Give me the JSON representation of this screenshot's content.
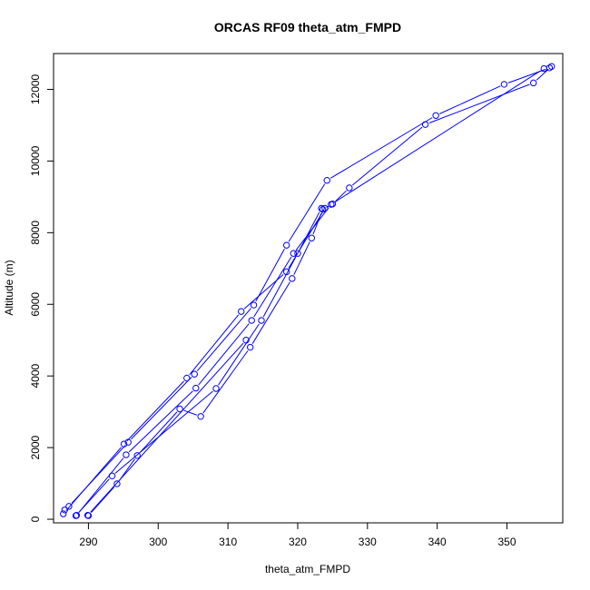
{
  "chart_data": {
    "type": "line",
    "title": "ORCAS RF09 theta_atm_FMPD",
    "xlabel": "theta_atm_FMPD",
    "ylabel": "Altitude (m)",
    "xlim": [
      285,
      358
    ],
    "ylim": [
      -100,
      13000
    ],
    "x_ticks": [
      290,
      300,
      310,
      320,
      330,
      340,
      350
    ],
    "y_ticks": [
      0,
      2000,
      4000,
      6000,
      8000,
      10000,
      12000
    ],
    "grid": false,
    "series_color": "#0000ff",
    "series": [
      {
        "x": [
          290.0,
          294.1,
          297.0,
          303.1,
          306.1,
          313.2,
          319.2,
          322.0,
          323.6,
          325.0,
          327.4,
          338.3,
          353.8,
          356.4
        ],
        "y": [
          100,
          990,
          1780,
          3080,
          2870,
          4800,
          6720,
          7850,
          8650,
          8800,
          9250,
          11020,
          12180,
          12640
        ]
      },
      {
        "x": [
          356.1,
          349.6,
          339.8,
          324.2,
          318.4,
          313.7,
          305.2,
          295.7,
          287.2,
          286.6
        ],
        "y": [
          12600,
          12140,
          11270,
          9460,
          7650,
          5980,
          4050,
          2150,
          360,
          260
        ]
      },
      {
        "x": [
          286.4,
          295.1,
          304.1,
          311.9,
          318.4,
          323.9
        ],
        "y": [
          150,
          2100,
          3940,
          5800,
          6910,
          8680
        ]
      },
      {
        "x": [
          288.3,
          295.4,
          305.4,
          313.4,
          319.4,
          324.8,
          355.3
        ],
        "y": [
          110,
          1800,
          3660,
          5550,
          7420,
          8790,
          12580
        ]
      },
      {
        "x": [
          288.2,
          293.4,
          308.3,
          314.8,
          320.0,
          323.4
        ],
        "y": [
          100,
          1210,
          3650,
          5550,
          7420,
          8680
        ]
      },
      {
        "x": [
          289.9,
          312.6
        ],
        "y": [
          110,
          5000
        ]
      }
    ]
  }
}
